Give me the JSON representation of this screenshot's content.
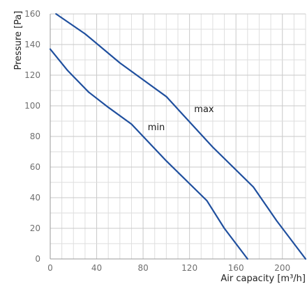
{
  "chart_data": {
    "type": "line",
    "title": "",
    "xlabel": "Air capacity [m³/h]",
    "ylabel": "Pressure [Pa]",
    "xlim": [
      0,
      220
    ],
    "ylim": [
      0,
      160
    ],
    "x_ticks": [
      0,
      40,
      80,
      120,
      160,
      200
    ],
    "y_ticks": [
      0,
      20,
      40,
      60,
      80,
      100,
      120,
      140,
      160
    ],
    "grid": true,
    "legend": "none",
    "line_color": "#1f4f9e",
    "series": [
      {
        "name": "max",
        "points": [
          [
            5,
            160
          ],
          [
            30,
            147
          ],
          [
            60,
            128
          ],
          [
            100,
            106
          ],
          [
            140,
            73
          ],
          [
            175,
            47
          ],
          [
            195,
            25
          ],
          [
            220,
            0
          ]
        ]
      },
      {
        "name": "min",
        "points": [
          [
            0,
            137
          ],
          [
            15,
            123
          ],
          [
            33,
            109
          ],
          [
            50,
            99
          ],
          [
            70,
            88
          ],
          [
            100,
            64
          ],
          [
            135,
            38
          ],
          [
            150,
            20
          ],
          [
            170,
            0
          ]
        ]
      }
    ],
    "annotations": [
      {
        "text": "max",
        "series": "max",
        "x": 124,
        "y": 96
      },
      {
        "text": "min",
        "series": "min",
        "x": 84,
        "y": 84
      }
    ]
  }
}
